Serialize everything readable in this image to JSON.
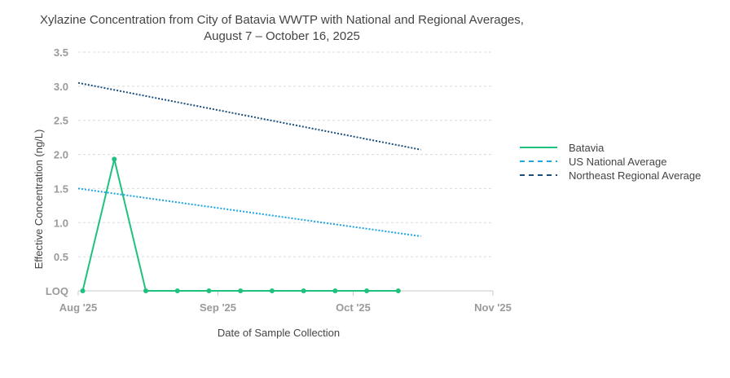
{
  "chart_data": {
    "type": "line",
    "title_lines": [
      "Xylazine Concentration from City of Batavia WWTP with National and Regional Averages,",
      "August 7 – October 16, 2025"
    ],
    "xlabel": "Date of Sample Collection",
    "ylabel": "Effective Concentration (ng/L)",
    "ylim": [
      0,
      3.5
    ],
    "y_ticks": [
      {
        "value": 0,
        "label": "LOQ"
      },
      {
        "value": 0.5,
        "label": "0.5"
      },
      {
        "value": 1.0,
        "label": "1.0"
      },
      {
        "value": 1.5,
        "label": "1.5"
      },
      {
        "value": 2.0,
        "label": "2.0"
      },
      {
        "value": 2.5,
        "label": "2.5"
      },
      {
        "value": 3.0,
        "label": "3.0"
      },
      {
        "value": 3.5,
        "label": "3.5"
      }
    ],
    "xlim_days": [
      0,
      92
    ],
    "x_ticks": [
      {
        "day": 0,
        "label": "Aug '25"
      },
      {
        "day": 31,
        "label": "Sep '25"
      },
      {
        "day": 61,
        "label": "Oct '25"
      },
      {
        "day": 92,
        "label": "Nov '25"
      }
    ],
    "grid": true,
    "legend_position": "right",
    "series": [
      {
        "name": "Batavia",
        "color": "#20c07f",
        "style": "solid",
        "markers": true,
        "x_days": [
          1,
          8,
          15,
          22,
          29,
          36,
          43,
          50,
          57,
          64,
          71
        ],
        "values": [
          0,
          1.93,
          0,
          0,
          0,
          0,
          0,
          0,
          0,
          0,
          0
        ]
      },
      {
        "name": "US National Average",
        "color": "#1ca5e0",
        "style": "dashed",
        "markers": false,
        "x_days": [
          0,
          76
        ],
        "values": [
          1.5,
          0.8
        ]
      },
      {
        "name": "Northeast Regional Average",
        "color": "#1a4f7c",
        "style": "dashed",
        "markers": false,
        "x_days": [
          0,
          76
        ],
        "values": [
          3.05,
          2.07
        ]
      }
    ]
  }
}
